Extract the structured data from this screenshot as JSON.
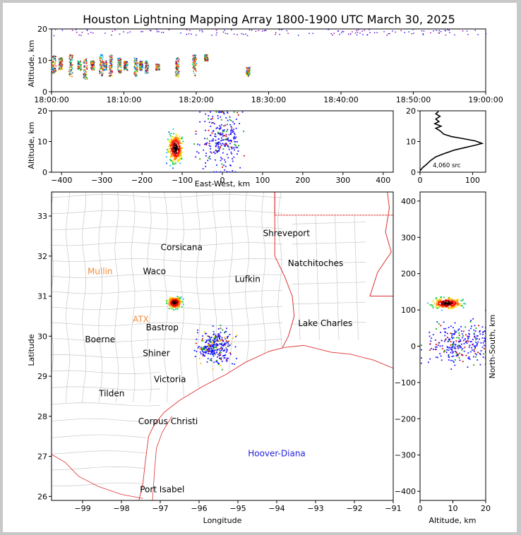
{
  "chart_data": [
    {
      "panel": "time-altitude",
      "type": "scatter",
      "title": "Houston Lightning Mapping Array 1800-1900 UTC March 30, 2025",
      "xlabel": "",
      "ylabel": "Altitude, km",
      "xlim": [
        0,
        60
      ],
      "ylim": [
        0,
        20
      ],
      "x_ticks": [
        "18:00:00",
        "18:10:00",
        "18:20:00",
        "18:30:00",
        "18:40:00",
        "18:50:00",
        "19:00:00"
      ],
      "y_ticks": [
        "0",
        "10",
        "20"
      ],
      "color_by": "time",
      "bursts": [
        {
          "t": 0.3,
          "alt_min": 6,
          "alt_max": 12
        },
        {
          "t": 1.2,
          "alt_min": 7,
          "alt_max": 11
        },
        {
          "t": 2.6,
          "alt_min": 5,
          "alt_max": 12
        },
        {
          "t": 3.8,
          "alt_min": 7,
          "alt_max": 10
        },
        {
          "t": 4.6,
          "alt_min": 4,
          "alt_max": 11
        },
        {
          "t": 5.6,
          "alt_min": 7,
          "alt_max": 10
        },
        {
          "t": 6.8,
          "alt_min": 5,
          "alt_max": 12
        },
        {
          "t": 7.3,
          "alt_min": 7,
          "alt_max": 10
        },
        {
          "t": 8.1,
          "alt_min": 5,
          "alt_max": 12
        },
        {
          "t": 9.3,
          "alt_min": 6,
          "alt_max": 11
        },
        {
          "t": 10.2,
          "alt_min": 7,
          "alt_max": 10
        },
        {
          "t": 11.6,
          "alt_min": 5,
          "alt_max": 11
        },
        {
          "t": 12.3,
          "alt_min": 7,
          "alt_max": 10
        },
        {
          "t": 13.1,
          "alt_min": 6,
          "alt_max": 10
        },
        {
          "t": 14.6,
          "alt_min": 7,
          "alt_max": 9
        },
        {
          "t": 17.3,
          "alt_min": 5,
          "alt_max": 11
        },
        {
          "t": 19.7,
          "alt_min": 5,
          "alt_max": 12
        },
        {
          "t": 21.3,
          "alt_min": 10,
          "alt_max": 12
        },
        {
          "t": 27.1,
          "alt_min": 5,
          "alt_max": 8
        }
      ]
    },
    {
      "panel": "east-west-altitude",
      "type": "scatter",
      "xlabel": "East-West, km",
      "ylabel": "Altitude, km",
      "xlim": [
        -425,
        425
      ],
      "ylim": [
        0,
        20
      ],
      "x_ticks": [
        "−400",
        "−300",
        "−200",
        "−100",
        "0",
        "100",
        "200",
        "300",
        "400"
      ],
      "y_ticks": [
        "0",
        "10",
        "20"
      ],
      "clusters": [
        {
          "x_center": -118,
          "alt_center": 8,
          "x_spread": 12,
          "alt_spread": 3,
          "color": "dense"
        },
        {
          "x_center": -5,
          "alt_center": 11,
          "x_spread": 35,
          "alt_spread": 7,
          "color": "blue"
        }
      ]
    },
    {
      "panel": "altitude-histogram",
      "type": "line",
      "xlabel": "",
      "ylabel": "",
      "xlim": [
        0,
        125
      ],
      "ylim": [
        0,
        20
      ],
      "x_ticks": [
        "0",
        "100"
      ],
      "y_ticks": [
        "0",
        "10",
        "20"
      ],
      "annotation": "4,060 src",
      "points": [
        [
          0,
          0.5
        ],
        [
          5,
          1.5
        ],
        [
          12,
          2.5
        ],
        [
          20,
          3.8
        ],
        [
          30,
          5
        ],
        [
          45,
          6
        ],
        [
          65,
          7.2
        ],
        [
          85,
          8
        ],
        [
          105,
          8.8
        ],
        [
          118,
          9.4
        ],
        [
          105,
          10.2
        ],
        [
          80,
          11
        ],
        [
          60,
          11.6
        ],
        [
          45,
          12.4
        ],
        [
          38,
          13.5
        ],
        [
          30,
          14.3
        ],
        [
          40,
          15
        ],
        [
          28,
          15.8
        ],
        [
          36,
          16.5
        ],
        [
          30,
          17.3
        ],
        [
          38,
          18.2
        ],
        [
          30,
          19
        ],
        [
          35,
          19.8
        ]
      ]
    },
    {
      "panel": "plan-view-map",
      "type": "scatter",
      "xlabel": "Longitude",
      "ylabel": "Latitude",
      "xlim": [
        -99.8,
        -91
      ],
      "ylim": [
        25.9,
        33.6
      ],
      "x_ticks": [
        "−99",
        "−98",
        "−97",
        "−96",
        "−95",
        "−94",
        "−93",
        "−92",
        "−91"
      ],
      "y_ticks": [
        "26",
        "27",
        "28",
        "29",
        "30",
        "31",
        "32",
        "33"
      ],
      "cities": [
        {
          "name": "Shreveport",
          "lon": -93.75,
          "lat": 32.5,
          "color": "#000000"
        },
        {
          "name": "Corsicana",
          "lon": -96.45,
          "lat": 32.15,
          "color": "#000000"
        },
        {
          "name": "Natchitoches",
          "lon": -93.0,
          "lat": 31.75,
          "color": "#000000"
        },
        {
          "name": "Mullin",
          "lon": -98.55,
          "lat": 31.55,
          "color": "#f08c3c"
        },
        {
          "name": "Waco",
          "lon": -97.15,
          "lat": 31.55,
          "color": "#000000"
        },
        {
          "name": "Lufkin",
          "lon": -94.75,
          "lat": 31.35,
          "color": "#000000"
        },
        {
          "name": "ATX",
          "lon": -97.5,
          "lat": 30.35,
          "color": "#f08c3c"
        },
        {
          "name": "Bastrop",
          "lon": -96.95,
          "lat": 30.15,
          "color": "#000000"
        },
        {
          "name": "Lake Charles",
          "lon": -92.75,
          "lat": 30.25,
          "color": "#000000"
        },
        {
          "name": "Boerne",
          "lon": -98.55,
          "lat": 29.85,
          "color": "#000000"
        },
        {
          "name": "Shiner",
          "lon": -97.1,
          "lat": 29.5,
          "color": "#000000"
        },
        {
          "name": "Victoria",
          "lon": -96.75,
          "lat": 28.85,
          "color": "#000000"
        },
        {
          "name": "Tilden",
          "lon": -98.25,
          "lat": 28.5,
          "color": "#000000"
        },
        {
          "name": "Corpus Christi",
          "lon": -96.8,
          "lat": 27.8,
          "color": "#000000"
        },
        {
          "name": "Hoover-Diana",
          "lon": -94.0,
          "lat": 27.0,
          "color": "#1e1edc"
        },
        {
          "name": "Port Isabel",
          "lon": -96.95,
          "lat": 26.1,
          "color": "#000000"
        }
      ],
      "clusters": [
        {
          "lon_center": -96.65,
          "lat_center": 30.85,
          "lon_spread": 0.12,
          "lat_spread": 0.1,
          "color": "dense"
        },
        {
          "lon_center": -95.6,
          "lat_center": 29.75,
          "lon_spread": 0.3,
          "lat_spread": 0.3,
          "color": "blue"
        }
      ]
    },
    {
      "panel": "altitude-north-south",
      "type": "scatter",
      "xlabel": "Altitude, km",
      "ylabel": "North-South, km",
      "xlim": [
        0,
        20
      ],
      "ylim": [
        -425,
        425
      ],
      "x_ticks": [
        "0",
        "10",
        "20"
      ],
      "y_ticks": [
        "−400",
        "−300",
        "−200",
        "−100",
        "0",
        "100",
        "200",
        "300",
        "400"
      ],
      "clusters": [
        {
          "alt_center": 8,
          "ns_center": 120,
          "alt_spread": 3,
          "ns_spread": 10,
          "color": "dense"
        },
        {
          "alt_center": 12,
          "ns_center": 10,
          "alt_spread": 7,
          "ns_spread": 40,
          "color": "blue"
        }
      ]
    }
  ]
}
